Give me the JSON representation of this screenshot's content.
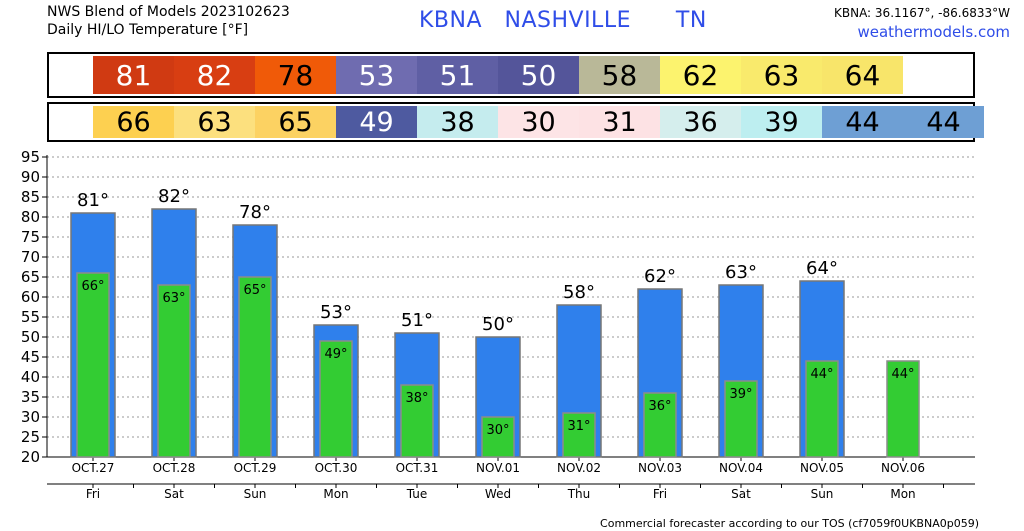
{
  "header": {
    "title_line1": "NWS Blend of Models 2023102623",
    "title_line2": "Daily HI/LO Temperature [°F]",
    "station": "KBNA   NASHVILLE      TN",
    "coords": "KBNA: 36.1167°, -86.6833°W",
    "website": "weathermodels.com"
  },
  "footer": "Commercial forecaster according to our TOS (cf7059f0UKBNA0p059)",
  "hi_band": [
    {
      "value": "81",
      "color": "#d03a12",
      "text_color": "#ffffff"
    },
    {
      "value": "82",
      "color": "#d83e12",
      "text_color": "#ffffff"
    },
    {
      "value": "78",
      "color": "#f05a08",
      "text_color": "#000000"
    },
    {
      "value": "53",
      "color": "#6f6cb0",
      "text_color": "#ffffff"
    },
    {
      "value": "51",
      "color": "#5f5fa4",
      "text_color": "#ffffff"
    },
    {
      "value": "50",
      "color": "#54559a",
      "text_color": "#ffffff"
    },
    {
      "value": "58",
      "color": "#b9b898",
      "text_color": "#000000"
    },
    {
      "value": "62",
      "color": "#fcf36e",
      "text_color": "#000000"
    },
    {
      "value": "63",
      "color": "#f9ea6c",
      "text_color": "#000000"
    },
    {
      "value": "64",
      "color": "#f8e56a",
      "text_color": "#000000"
    }
  ],
  "lo_band": [
    {
      "value": "66",
      "color": "#fdd050",
      "text_color": "#000000"
    },
    {
      "value": "63",
      "color": "#fce07e",
      "text_color": "#000000"
    },
    {
      "value": "65",
      "color": "#fcd262",
      "text_color": "#000000"
    },
    {
      "value": "49",
      "color": "#4e5aa0",
      "text_color": "#ffffff"
    },
    {
      "value": "38",
      "color": "#c5ecee",
      "text_color": "#000000"
    },
    {
      "value": "30",
      "color": "#fde4e6",
      "text_color": "#000000"
    },
    {
      "value": "31",
      "color": "#fde2e4",
      "text_color": "#000000"
    },
    {
      "value": "36",
      "color": "#d5eeed",
      "text_color": "#000000"
    },
    {
      "value": "39",
      "color": "#bdeef0",
      "text_color": "#000000"
    },
    {
      "value": "44",
      "color": "#6e9fd4",
      "text_color": "#000000"
    },
    {
      "value": "44",
      "color": "#6e9fd4",
      "text_color": "#000000"
    }
  ],
  "chart_data": {
    "type": "bar",
    "categories": [
      "OCT.27",
      "OCT.28",
      "OCT.29",
      "OCT.30",
      "OCT.31",
      "NOV.01",
      "NOV.02",
      "NOV.03",
      "NOV.04",
      "NOV.05",
      "NOV.06"
    ],
    "days": [
      "Fri",
      "Sat",
      "Sun",
      "Mon",
      "Tue",
      "Wed",
      "Thu",
      "Fri",
      "Sat",
      "Sun",
      "Mon"
    ],
    "series": [
      {
        "values": [
          81,
          82,
          78,
          53,
          51,
          50,
          58,
          62,
          63,
          64,
          null
        ],
        "color": "#2f80ec"
      },
      {
        "values": [
          66,
          63,
          65,
          49,
          38,
          30,
          31,
          36,
          39,
          44,
          44
        ],
        "color": "#33cc33"
      }
    ],
    "hi_labels": [
      "81°",
      "82°",
      "78°",
      "53°",
      "51°",
      "50°",
      "58°",
      "62°",
      "63°",
      "64°",
      ""
    ],
    "lo_labels": [
      "66°",
      "63°",
      "65°",
      "49°",
      "38°",
      "30°",
      "31°",
      "36°",
      "39°",
      "44°",
      "44°"
    ],
    "yticks": [
      "20",
      "25",
      "30",
      "35",
      "40",
      "45",
      "50",
      "55",
      "60",
      "65",
      "70",
      "75",
      "80",
      "85",
      "90",
      "95"
    ],
    "ylim": [
      20,
      95
    ],
    "grid": true
  }
}
